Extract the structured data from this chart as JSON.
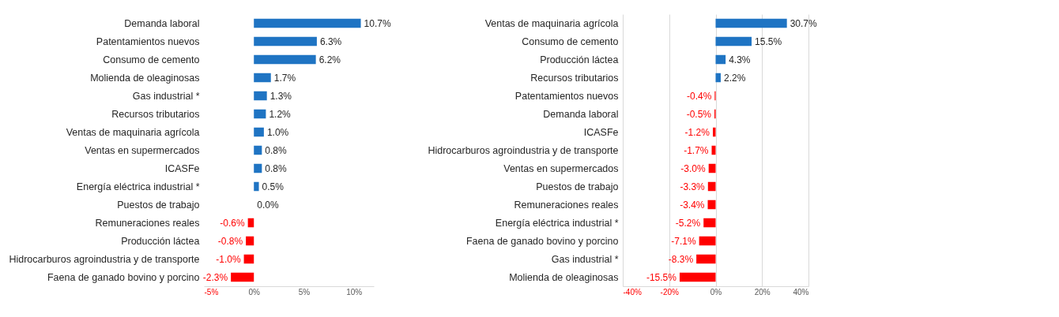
{
  "chart_data": [
    {
      "type": "bar",
      "orientation": "horizontal",
      "grid": false,
      "categories": [
        "Demanda laboral",
        "Patentamientos nuevos",
        "Consumo de cemento",
        "Molienda de oleaginosas",
        "Gas industrial *",
        "Recursos tributarios",
        "Ventas de maquinaria agrícola",
        "Ventas en supermercados",
        "ICASFe",
        "Energía eléctrica industrial *",
        "Puestos de trabajo",
        "Remuneraciones reales",
        "Producción láctea",
        "Hidrocarburos agroindustria y de transporte",
        "Faena de ganado bovino y porcino"
      ],
      "values": [
        10.7,
        6.3,
        6.2,
        1.7,
        1.3,
        1.2,
        1.0,
        0.8,
        0.8,
        0.5,
        0.0,
        -0.6,
        -0.8,
        -1.0,
        -2.3
      ],
      "value_labels": [
        "10.7%",
        "6.3%",
        "6.2%",
        "1.7%",
        "1.3%",
        "1.2%",
        "1.0%",
        "0.8%",
        "0.8%",
        "0.5%",
        "0.0%",
        "-0.6%",
        "-0.8%",
        "-1.0%",
        "-2.3%"
      ],
      "colors": [
        "#1f74c3",
        "#1f74c3",
        "#1f74c3",
        "#1f74c3",
        "#1f74c3",
        "#1f74c3",
        "#1f74c3",
        "#1f74c3",
        "#1f74c3",
        "#1f74c3",
        "#1f74c3",
        "#ff0000",
        "#ff0000",
        "#ff0000",
        "#ff0000"
      ],
      "xlim": [
        -5,
        12
      ],
      "xticks": [
        {
          "value": -5,
          "label": "-5%"
        },
        {
          "value": 0,
          "label": "0%"
        },
        {
          "value": 5,
          "label": "5%"
        },
        {
          "value": 10,
          "label": "10%"
        }
      ]
    },
    {
      "type": "bar",
      "orientation": "horizontal",
      "grid": "x",
      "categories": [
        "Ventas de maquinaria agrícola",
        "Consumo de cemento",
        "Producción láctea",
        "Recursos tributarios",
        "Patentamientos nuevos",
        "Demanda laboral",
        "ICASFe",
        "Hidrocarburos agroindustria y de transporte",
        "Ventas en supermercados",
        "Puestos de trabajo",
        "Remuneraciones reales",
        "Energía eléctrica industrial *",
        "Faena de ganado bovino y porcino",
        "Gas industrial *",
        "Molienda de oleaginosas"
      ],
      "values": [
        30.7,
        15.5,
        4.3,
        2.2,
        -0.4,
        -0.5,
        -1.2,
        -1.7,
        -3.0,
        -3.3,
        -3.4,
        -5.2,
        -7.1,
        -8.3,
        -15.5
      ],
      "value_labels": [
        "30.7%",
        "15.5%",
        "4.3%",
        "2.2%",
        "-0.4%",
        "-0.5%",
        "-1.2%",
        "-1.7%",
        "-3.0%",
        "-3.3%",
        "-3.4%",
        "-5.2%",
        "-7.1%",
        "-8.3%",
        "-15.5%"
      ],
      "colors": [
        "#1f74c3",
        "#1f74c3",
        "#1f74c3",
        "#1f74c3",
        "#ff0000",
        "#ff0000",
        "#ff0000",
        "#ff0000",
        "#ff0000",
        "#ff0000",
        "#ff0000",
        "#ff0000",
        "#ff0000",
        "#ff0000",
        "#ff0000"
      ],
      "xlim": [
        -40,
        40
      ],
      "xticks": [
        {
          "value": -40,
          "label": "-40%"
        },
        {
          "value": -20,
          "label": "-20%"
        },
        {
          "value": 0,
          "label": "0%"
        },
        {
          "value": 20,
          "label": "20%"
        },
        {
          "value": 40,
          "label": "40%"
        }
      ]
    }
  ]
}
